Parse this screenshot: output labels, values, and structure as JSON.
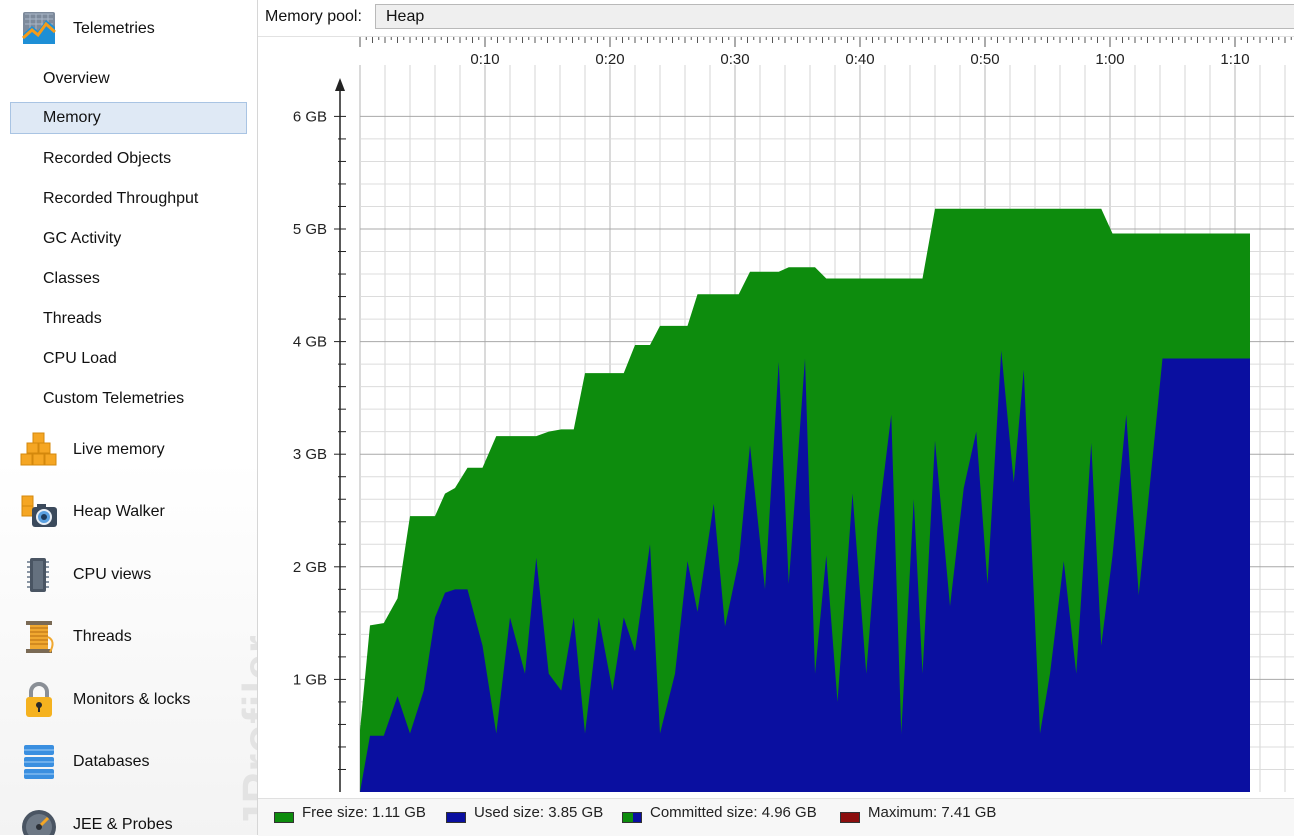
{
  "sidebar": {
    "watermark": "JProfiler",
    "sections": [
      {
        "label": "Telemetries",
        "icon": "telemetries-icon"
      },
      {
        "label": "Live memory",
        "icon": "live-memory-icon"
      },
      {
        "label": "Heap Walker",
        "icon": "heap-walker-icon"
      },
      {
        "label": "CPU views",
        "icon": "cpu-views-icon"
      },
      {
        "label": "Threads",
        "icon": "threads-icon"
      },
      {
        "label": "Monitors & locks",
        "icon": "monitors-locks-icon"
      },
      {
        "label": "Databases",
        "icon": "databases-icon"
      },
      {
        "label": "JEE & Probes",
        "icon": "jee-probes-icon"
      }
    ],
    "telemetry_items": [
      {
        "label": "Overview",
        "selected": false
      },
      {
        "label": "Memory",
        "selected": true
      },
      {
        "label": "Recorded Objects",
        "selected": false
      },
      {
        "label": "Recorded Throughput",
        "selected": false
      },
      {
        "label": "GC Activity",
        "selected": false
      },
      {
        "label": "Classes",
        "selected": false
      },
      {
        "label": "Threads",
        "selected": false
      },
      {
        "label": "CPU Load",
        "selected": false
      },
      {
        "label": "Custom Telemetries",
        "selected": false
      }
    ]
  },
  "toolbar": {
    "memory_pool_label": "Memory pool:",
    "memory_pool_value": "Heap"
  },
  "legend": [
    {
      "label": "Free size: 1.11 GB",
      "color": "#0d8c0d"
    },
    {
      "label": "Used size: 3.85 GB",
      "color": "#0a0fa0"
    },
    {
      "label": "Committed size: 4.96 GB",
      "color": "#0d8c0d",
      "secondary_color": "#0a0fa0"
    },
    {
      "label": "Maximum: 7.41 GB",
      "color": "#8b0e0e"
    }
  ],
  "chart_data": {
    "type": "area",
    "x_unit": "minutes",
    "x_ticks": [
      "0:10",
      "0:20",
      "0:30",
      "0:40",
      "0:50",
      "1:00",
      "1:10"
    ],
    "y_ticks": [
      "1 GB",
      "2 GB",
      "3 GB",
      "4 GB",
      "5 GB",
      "6 GB"
    ],
    "xlim": [
      0,
      75
    ],
    "ylim": [
      0,
      6
    ],
    "grid": true,
    "colors": {
      "free": "#0d8c0d",
      "used": "#0a0fa0"
    },
    "series": [
      {
        "name": "Committed size",
        "points": [
          [
            0.0,
            0.55
          ],
          [
            0.8,
            1.48
          ],
          [
            1.9,
            1.5
          ],
          [
            3.0,
            1.72
          ],
          [
            4.0,
            2.45
          ],
          [
            5.1,
            2.45
          ],
          [
            6.0,
            2.45
          ],
          [
            6.8,
            2.65
          ],
          [
            7.6,
            2.7
          ],
          [
            8.6,
            2.88
          ],
          [
            9.8,
            2.88
          ],
          [
            10.9,
            3.16
          ],
          [
            12.0,
            3.16
          ],
          [
            13.2,
            3.16
          ],
          [
            14.1,
            3.16
          ],
          [
            15.1,
            3.2
          ],
          [
            16.1,
            3.22
          ],
          [
            17.1,
            3.22
          ],
          [
            18.0,
            3.72
          ],
          [
            19.1,
            3.72
          ],
          [
            20.2,
            3.72
          ],
          [
            21.1,
            3.72
          ],
          [
            22.0,
            3.97
          ],
          [
            23.2,
            3.97
          ],
          [
            24.0,
            4.14
          ],
          [
            25.2,
            4.14
          ],
          [
            26.2,
            4.14
          ],
          [
            27.0,
            4.42
          ],
          [
            28.3,
            4.42
          ],
          [
            29.2,
            4.42
          ],
          [
            30.3,
            4.42
          ],
          [
            31.2,
            4.62
          ],
          [
            32.4,
            4.62
          ],
          [
            33.5,
            4.62
          ],
          [
            34.3,
            4.66
          ],
          [
            35.6,
            4.66
          ],
          [
            36.4,
            4.66
          ],
          [
            37.3,
            4.56
          ],
          [
            38.2,
            4.56
          ],
          [
            39.4,
            4.56
          ],
          [
            40.5,
            4.56
          ],
          [
            41.4,
            4.56
          ],
          [
            42.5,
            4.56
          ],
          [
            43.3,
            4.56
          ],
          [
            44.3,
            4.56
          ],
          [
            45.0,
            4.56
          ],
          [
            46.0,
            5.18
          ],
          [
            47.2,
            5.18
          ],
          [
            48.3,
            5.18
          ],
          [
            49.3,
            5.18
          ],
          [
            50.2,
            5.18
          ],
          [
            51.3,
            5.18
          ],
          [
            52.3,
            5.18
          ],
          [
            53.1,
            5.18
          ],
          [
            54.4,
            5.18
          ],
          [
            55.2,
            5.18
          ],
          [
            56.3,
            5.18
          ],
          [
            57.3,
            5.18
          ],
          [
            58.5,
            5.18
          ],
          [
            59.3,
            5.18
          ],
          [
            60.2,
            4.96
          ],
          [
            61.3,
            4.96
          ],
          [
            62.3,
            4.96
          ],
          [
            63.3,
            4.96
          ],
          [
            64.2,
            4.96
          ],
          [
            65.3,
            4.96
          ],
          [
            66.3,
            4.96
          ],
          [
            67.3,
            4.96
          ],
          [
            68.3,
            4.96
          ],
          [
            69.3,
            4.96
          ],
          [
            70.2,
            4.96
          ],
          [
            71.2,
            4.96
          ]
        ]
      },
      {
        "name": "Used size",
        "points": [
          [
            0.0,
            0.0
          ],
          [
            0.8,
            0.5
          ],
          [
            1.9,
            0.5
          ],
          [
            3.0,
            0.85
          ],
          [
            4.0,
            0.52
          ],
          [
            5.1,
            0.9
          ],
          [
            6.0,
            1.55
          ],
          [
            6.8,
            1.77
          ],
          [
            7.6,
            1.8
          ],
          [
            8.6,
            1.8
          ],
          [
            9.8,
            1.3
          ],
          [
            10.9,
            0.52
          ],
          [
            12.0,
            1.55
          ],
          [
            13.2,
            1.05
          ],
          [
            14.1,
            2.08
          ],
          [
            15.1,
            1.05
          ],
          [
            16.1,
            0.9
          ],
          [
            17.1,
            1.55
          ],
          [
            18.0,
            0.52
          ],
          [
            19.1,
            1.55
          ],
          [
            20.2,
            0.9
          ],
          [
            21.1,
            1.55
          ],
          [
            22.0,
            1.25
          ],
          [
            23.2,
            2.2
          ],
          [
            24.0,
            0.52
          ],
          [
            25.2,
            1.05
          ],
          [
            26.2,
            2.05
          ],
          [
            27.0,
            1.6
          ],
          [
            28.3,
            2.56
          ],
          [
            29.2,
            1.47
          ],
          [
            30.3,
            2.05
          ],
          [
            31.2,
            3.08
          ],
          [
            32.4,
            1.8
          ],
          [
            33.5,
            3.82
          ],
          [
            34.3,
            1.85
          ],
          [
            35.6,
            3.85
          ],
          [
            36.4,
            1.05
          ],
          [
            37.3,
            2.1
          ],
          [
            38.2,
            0.8
          ],
          [
            39.4,
            2.65
          ],
          [
            40.5,
            1.05
          ],
          [
            41.4,
            2.35
          ],
          [
            42.5,
            3.35
          ],
          [
            43.3,
            0.52
          ],
          [
            44.3,
            2.6
          ],
          [
            45.0,
            1.05
          ],
          [
            46.0,
            3.12
          ],
          [
            47.2,
            1.65
          ],
          [
            48.3,
            2.7
          ],
          [
            49.3,
            3.2
          ],
          [
            50.2,
            1.85
          ],
          [
            51.3,
            3.92
          ],
          [
            52.3,
            2.75
          ],
          [
            53.1,
            3.75
          ],
          [
            54.4,
            0.52
          ],
          [
            55.2,
            1.05
          ],
          [
            56.3,
            2.05
          ],
          [
            57.3,
            1.05
          ],
          [
            58.5,
            3.1
          ],
          [
            59.3,
            1.3
          ],
          [
            60.2,
            2.1
          ],
          [
            61.3,
            3.35
          ],
          [
            62.3,
            1.75
          ],
          [
            63.3,
            2.85
          ],
          [
            64.2,
            3.85
          ],
          [
            65.3,
            3.85
          ],
          [
            66.3,
            3.85
          ],
          [
            67.3,
            3.85
          ],
          [
            68.3,
            3.85
          ],
          [
            69.3,
            3.85
          ],
          [
            70.2,
            3.85
          ],
          [
            71.2,
            3.85
          ]
        ]
      }
    ]
  }
}
